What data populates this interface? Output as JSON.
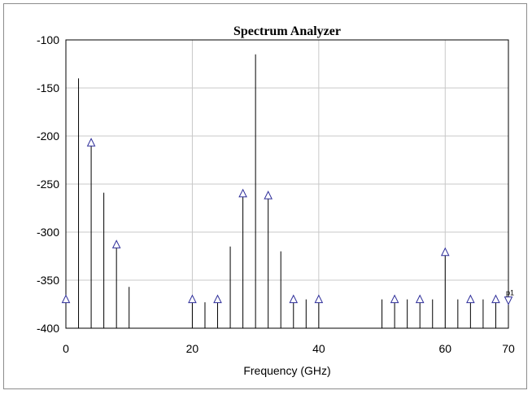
{
  "chart_data": {
    "type": "stem",
    "title": "Spectrum Analyzer",
    "xlabel": "Frequency (GHz)",
    "ylabel": "",
    "xlim": [
      0,
      70
    ],
    "ylim": [
      -400,
      -100
    ],
    "xticks": [
      0,
      20,
      40,
      60,
      70
    ],
    "yticks": [
      -100,
      -150,
      -200,
      -250,
      -300,
      -350,
      -400
    ],
    "grid": true,
    "colors": {
      "stem": "#000000",
      "marker": "#2f2f9a",
      "grid": "#c8c8c8"
    },
    "series": [
      {
        "x": [
          2,
          6,
          10,
          22,
          26,
          30,
          34,
          38,
          50,
          54,
          58,
          62,
          66
        ],
        "y": [
          -140,
          -259,
          -357,
          -373,
          -315,
          -115,
          -320,
          -370,
          -370,
          -370,
          -370,
          -370,
          -370
        ]
      },
      {
        "marker": "triangle-up",
        "x": [
          0,
          4,
          8,
          20,
          24,
          28,
          32,
          36,
          40,
          52,
          56,
          60,
          64,
          68
        ],
        "y": [
          -370,
          -207,
          -313,
          -370,
          -370,
          -260,
          -262,
          -370,
          -370,
          -370,
          -370,
          -321,
          -370,
          -370
        ]
      }
    ],
    "annotations": [
      {
        "text": "p1",
        "x": 70,
        "y": -370,
        "marker": "triangle-down"
      }
    ]
  }
}
